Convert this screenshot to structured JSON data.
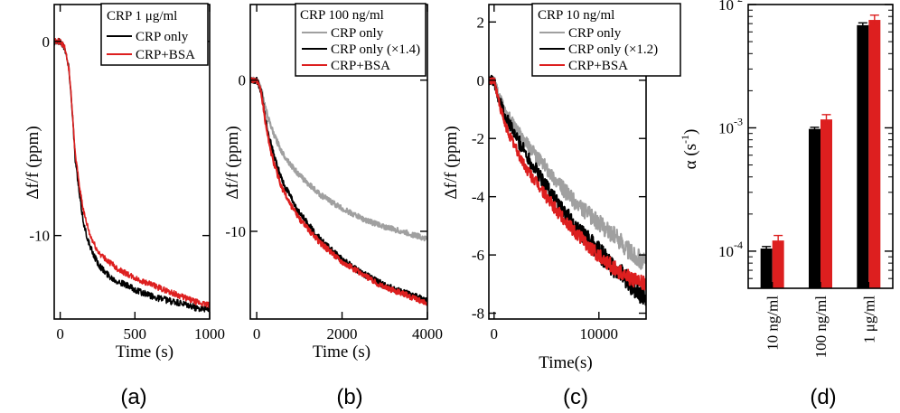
{
  "figure": {
    "panel_labels": [
      "(a)",
      "(b)",
      "(c)",
      "(d)"
    ]
  },
  "chart_data": [
    {
      "id": "a",
      "type": "line",
      "xlabel": "Time (s)",
      "ylabel": "Δf/f (ppm)",
      "xlim": [
        -40,
        1000
      ],
      "ylim": [
        -14.3,
        1.9
      ],
      "xticks": [
        0,
        500,
        1000
      ],
      "xtick_labels": [
        "0",
        "500",
        "1000"
      ],
      "yticks": [
        0,
        -10
      ],
      "ytick_labels": [
        "0",
        "-10"
      ],
      "legend_title": "CRP 1 μg/ml",
      "series": [
        {
          "name": "CRP only",
          "color": "#000000",
          "x": [
            0,
            30,
            60,
            80,
            100,
            130,
            160,
            200,
            250,
            300,
            350,
            400,
            450,
            500,
            600,
            700,
            800,
            900,
            1000
          ],
          "y": [
            0,
            -0.3,
            -1.5,
            -3.5,
            -6.0,
            -8.0,
            -9.5,
            -10.6,
            -11.4,
            -11.9,
            -12.2,
            -12.4,
            -12.6,
            -12.8,
            -13.1,
            -13.3,
            -13.5,
            -13.7,
            -13.8
          ]
        },
        {
          "name": "CRP+BSA",
          "color": "#dd1f1f",
          "x": [
            0,
            30,
            60,
            80,
            100,
            130,
            160,
            200,
            250,
            300,
            350,
            400,
            450,
            500,
            600,
            700,
            800,
            900,
            1000
          ],
          "y": [
            0,
            -0.3,
            -1.5,
            -3.5,
            -5.8,
            -7.5,
            -8.9,
            -10.0,
            -10.8,
            -11.2,
            -11.5,
            -11.8,
            -12.0,
            -12.2,
            -12.5,
            -12.8,
            -13.1,
            -13.4,
            -13.6
          ]
        }
      ]
    },
    {
      "id": "b",
      "type": "line",
      "xlabel": "Time (s)",
      "ylabel": "Δf/f (ppm)",
      "xlim": [
        -150,
        4000
      ],
      "ylim": [
        -15.8,
        5.0
      ],
      "xticks": [
        0,
        2000,
        4000
      ],
      "xtick_labels": [
        "0",
        "2000",
        "4000"
      ],
      "yticks": [
        0,
        -10
      ],
      "ytick_labels": [
        "0",
        "-10"
      ],
      "legend_title": "CRP 100 ng/ml",
      "series": [
        {
          "name": "CRP only",
          "color": "#a0a0a0",
          "x": [
            0,
            100,
            200,
            300,
            400,
            600,
            800,
            1000,
            1500,
            2000,
            2500,
            3000,
            3500,
            4000
          ],
          "y": [
            0,
            -0.5,
            -1.8,
            -2.8,
            -3.6,
            -4.8,
            -5.6,
            -6.3,
            -7.6,
            -8.5,
            -9.2,
            -9.7,
            -10.1,
            -10.5
          ]
        },
        {
          "name": "CRP only (×1.4)",
          "color": "#000000",
          "x": [
            0,
            100,
            200,
            300,
            400,
            600,
            800,
            1000,
            1500,
            2000,
            2500,
            3000,
            3500,
            4000
          ],
          "y": [
            0,
            -0.7,
            -2.5,
            -3.9,
            -5.0,
            -6.7,
            -7.8,
            -8.8,
            -10.6,
            -11.9,
            -12.8,
            -13.6,
            -14.1,
            -14.6
          ]
        },
        {
          "name": "CRP+BSA",
          "color": "#dd1f1f",
          "x": [
            0,
            100,
            200,
            300,
            400,
            600,
            800,
            1000,
            1500,
            2000,
            2500,
            3000,
            3500,
            4000
          ],
          "y": [
            0,
            -0.7,
            -2.7,
            -4.3,
            -5.5,
            -7.2,
            -8.3,
            -9.2,
            -10.8,
            -12.0,
            -12.9,
            -13.7,
            -14.2,
            -14.8
          ]
        }
      ]
    },
    {
      "id": "c",
      "type": "line",
      "xlabel": "Time(s)",
      "ylabel": "Δf/f (ppm)",
      "xlim": [
        -500,
        14500
      ],
      "ylim": [
        -8.2,
        2.6
      ],
      "xticks": [
        0,
        10000
      ],
      "xtick_labels": [
        "0",
        "10000"
      ],
      "yticks": [
        2,
        0,
        -2,
        -4,
        -6,
        -8
      ],
      "ytick_labels": [
        "2",
        "0",
        "-2",
        "-4",
        "-6",
        "-8"
      ],
      "legend_title": "CRP 10 ng/ml",
      "series": [
        {
          "name": "CRP only",
          "color": "#a0a0a0",
          "x": [
            -400,
            0,
            500,
            1000,
            2000,
            3000,
            4000,
            5000,
            6000,
            7000,
            8000,
            9000,
            10000,
            11000,
            12000,
            13000,
            14500
          ],
          "y": [
            0,
            0,
            -0.6,
            -1.0,
            -1.6,
            -2.1,
            -2.6,
            -3.0,
            -3.5,
            -3.9,
            -4.3,
            -4.6,
            -4.9,
            -5.2,
            -5.5,
            -5.9,
            -6.3
          ]
        },
        {
          "name": "CRP only (×1.2)",
          "color": "#000000",
          "x": [
            -400,
            0,
            500,
            1000,
            2000,
            3000,
            4000,
            5000,
            6000,
            7000,
            8000,
            9000,
            10000,
            11000,
            12000,
            13000,
            14500
          ],
          "y": [
            0,
            0,
            -0.7,
            -1.2,
            -1.9,
            -2.5,
            -3.1,
            -3.6,
            -4.2,
            -4.7,
            -5.2,
            -5.5,
            -5.9,
            -6.3,
            -6.6,
            -7.0,
            -7.5
          ]
        },
        {
          "name": "CRP+BSA",
          "color": "#dd1f1f",
          "x": [
            -400,
            0,
            500,
            1000,
            2000,
            3000,
            4000,
            5000,
            6000,
            7000,
            8000,
            9000,
            10000,
            11000,
            12000,
            13000,
            14500
          ],
          "y": [
            0,
            0,
            -0.8,
            -1.5,
            -2.3,
            -3.0,
            -3.5,
            -4.0,
            -4.5,
            -4.9,
            -5.3,
            -5.7,
            -6.0,
            -6.3,
            -6.6,
            -6.8,
            -7.0
          ]
        }
      ]
    },
    {
      "id": "d",
      "type": "bar",
      "yscale": "log",
      "ylabel_main": "α (s",
      "ylabel_exp": "-1",
      "ylabel_close": ")",
      "ylim": [
        5e-05,
        0.01
      ],
      "yticks": [
        {
          "value": 0.0001,
          "base": "10",
          "exp": "-4"
        },
        {
          "value": 0.001,
          "base": "10",
          "exp": "-3"
        },
        {
          "value": 0.01,
          "base": "10",
          "exp": "-2"
        }
      ],
      "categories": [
        "10 ng/ml",
        "100 ng/ml",
        "1 μg/ml"
      ],
      "series": [
        {
          "name": "CRP only",
          "color": "#000000",
          "values": [
            0.000105,
            0.00098,
            0.0068
          ],
          "errors": [
            4e-06,
            3e-05,
            0.0003
          ]
        },
        {
          "name": "CRP+BSA",
          "color": "#dd1f1f",
          "values": [
            0.000122,
            0.00117,
            0.0075
          ],
          "errors": [
            1.2e-05,
            0.00011,
            0.0007
          ]
        }
      ]
    }
  ]
}
